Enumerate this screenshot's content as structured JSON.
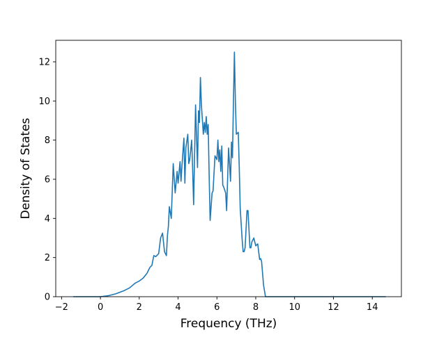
{
  "chart_data": {
    "type": "line",
    "title": "",
    "xlabel": "Frequency (THz)",
    "ylabel": "Density of States",
    "xlim": [
      -2.3,
      15.5
    ],
    "ylim": [
      0,
      13.1
    ],
    "xticks": [
      -2,
      0,
      2,
      4,
      6,
      8,
      10,
      12,
      14
    ],
    "yticks": [
      0,
      2,
      4,
      6,
      8,
      10,
      12
    ],
    "xtick_labels": [
      "−2",
      "0",
      "2",
      "4",
      "6",
      "8",
      "10",
      "12",
      "14"
    ],
    "ytick_labels": [
      "0",
      "2",
      "4",
      "6",
      "8",
      "10",
      "12"
    ],
    "grid": false,
    "legend": "none",
    "series": [
      {
        "color": "#1f77b4",
        "x": [
          -1.4,
          -1.0,
          -0.5,
          0.0,
          0.4,
          0.8,
          1.2,
          1.5,
          1.8,
          2.0,
          2.2,
          2.4,
          2.55,
          2.65,
          2.75,
          2.85,
          3.0,
          3.1,
          3.2,
          3.3,
          3.4,
          3.45,
          3.5,
          3.55,
          3.65,
          3.75,
          3.85,
          3.95,
          4.0,
          4.1,
          4.15,
          4.2,
          4.3,
          4.35,
          4.4,
          4.5,
          4.55,
          4.6,
          4.7,
          4.75,
          4.8,
          4.9,
          5.0,
          5.05,
          5.1,
          5.15,
          5.2,
          5.3,
          5.35,
          5.4,
          5.45,
          5.5,
          5.55,
          5.6,
          5.65,
          5.75,
          5.8,
          5.9,
          6.0,
          6.05,
          6.1,
          6.15,
          6.2,
          6.25,
          6.3,
          6.35,
          6.45,
          6.5,
          6.6,
          6.7,
          6.75,
          6.8,
          6.85,
          6.9,
          6.95,
          7.0,
          7.1,
          7.15,
          7.2,
          7.3,
          7.35,
          7.4,
          7.45,
          7.55,
          7.6,
          7.7,
          7.75,
          7.8,
          7.9,
          8.0,
          8.1,
          8.2,
          8.25,
          8.3,
          8.4,
          8.5,
          8.55,
          8.6,
          8.7,
          8.75,
          8.8,
          8.85,
          9.0,
          9.5,
          10.0,
          10.4,
          10.5,
          10.55,
          10.6,
          10.7,
          10.8,
          10.85,
          10.9,
          10.95,
          11.0,
          11.05,
          11.1,
          11.2,
          11.25,
          11.3,
          11.4,
          11.5,
          11.6,
          11.65,
          11.7,
          11.75,
          11.8,
          11.85,
          11.9,
          11.95,
          12.0,
          12.05,
          12.1,
          12.15,
          12.2,
          12.25,
          12.3,
          12.35,
          12.4,
          12.45,
          12.5,
          12.55,
          12.6,
          12.65,
          12.7,
          12.75,
          12.8,
          12.85,
          12.9,
          13.0,
          13.05,
          13.1,
          13.2,
          13.3,
          13.4,
          13.5,
          14.0,
          14.7
        ],
        "y": [
          0,
          0,
          0,
          0,
          0.05,
          0.15,
          0.3,
          0.45,
          0.7,
          0.8,
          0.95,
          1.2,
          1.5,
          1.6,
          2.1,
          2.05,
          2.2,
          3.0,
          3.25,
          2.3,
          2.1,
          3.1,
          3.6,
          4.6,
          4.0,
          6.8,
          5.3,
          6.4,
          5.8,
          6.9,
          5.9,
          6.7,
          8.1,
          5.8,
          7.6,
          8.3,
          6.8,
          7.0,
          8.0,
          6.5,
          4.7,
          9.8,
          6.6,
          9.5,
          8.9,
          11.2,
          9.8,
          8.3,
          8.9,
          8.4,
          9.2,
          8.3,
          8.8,
          6.2,
          3.9,
          5.3,
          5.4,
          7.2,
          7.0,
          8.0,
          6.9,
          7.5,
          6.4,
          7.7,
          5.7,
          5.6,
          5.3,
          4.4,
          7.6,
          5.9,
          7.9,
          7.1,
          9.9,
          12.5,
          10.0,
          8.3,
          8.4,
          6.6,
          4.5,
          2.9,
          2.3,
          2.3,
          2.5,
          4.4,
          4.4,
          2.5,
          2.5,
          2.8,
          3.0,
          2.6,
          2.7,
          1.9,
          1.95,
          1.8,
          0.6,
          0,
          0,
          0,
          0,
          0,
          0,
          0,
          0,
          0,
          0,
          0,
          0,
          0,
          0,
          0,
          0,
          0,
          0,
          0,
          0,
          0,
          0,
          0,
          0,
          0,
          0,
          0,
          0,
          0,
          0,
          0,
          0,
          0,
          0,
          0,
          0,
          0,
          0,
          0,
          0,
          0,
          0,
          0,
          0,
          0,
          0,
          0,
          0,
          0,
          0,
          0,
          0,
          0,
          0,
          0,
          0,
          0,
          0,
          0,
          0,
          0,
          0,
          0
        ]
      }
    ]
  }
}
